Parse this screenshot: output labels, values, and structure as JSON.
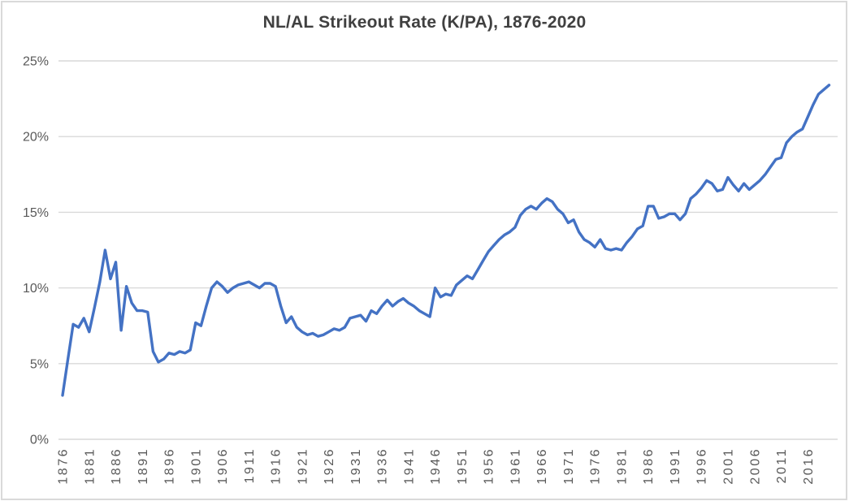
{
  "chart_data": {
    "type": "line",
    "title": "NL/AL Strikeout Rate (K/PA), 1876-2020",
    "xlabel": "",
    "ylabel": "",
    "series_name": "Strikeout rate (K/PA)",
    "x_start": 1876,
    "x_end": 2020,
    "x_step": 1,
    "values_unit": "percent",
    "values": [
      2.9,
      5.3,
      7.6,
      7.4,
      8.0,
      7.1,
      8.7,
      10.4,
      12.5,
      10.6,
      11.7,
      7.2,
      10.1,
      9.0,
      8.5,
      8.5,
      8.4,
      5.8,
      5.1,
      5.3,
      5.7,
      5.6,
      5.8,
      5.7,
      5.9,
      7.7,
      7.5,
      8.8,
      10.0,
      10.4,
      10.1,
      9.7,
      10.0,
      10.2,
      10.3,
      10.4,
      10.2,
      10.0,
      10.3,
      10.3,
      10.1,
      8.8,
      7.7,
      8.1,
      7.4,
      7.1,
      6.9,
      7.0,
      6.8,
      6.9,
      7.1,
      7.3,
      7.2,
      7.4,
      8.0,
      8.1,
      8.2,
      7.8,
      8.5,
      8.3,
      8.8,
      9.2,
      8.8,
      9.1,
      9.3,
      9.0,
      8.8,
      8.5,
      8.3,
      8.1,
      10.0,
      9.4,
      9.6,
      9.5,
      10.2,
      10.5,
      10.8,
      10.6,
      11.2,
      11.8,
      12.4,
      12.8,
      13.2,
      13.5,
      13.7,
      14.0,
      14.8,
      15.2,
      15.4,
      15.2,
      15.6,
      15.9,
      15.7,
      15.2,
      14.9,
      14.3,
      14.5,
      13.7,
      13.2,
      13.0,
      12.7,
      13.2,
      12.6,
      12.5,
      12.6,
      12.5,
      13.0,
      13.4,
      13.9,
      14.1,
      15.4,
      15.4,
      14.6,
      14.7,
      14.9,
      14.9,
      14.5,
      14.9,
      15.9,
      16.2,
      16.6,
      17.1,
      16.9,
      16.4,
      16.5,
      17.3,
      16.8,
      16.4,
      16.9,
      16.5,
      16.8,
      17.1,
      17.5,
      18.0,
      18.5,
      18.6,
      19.6,
      20.0,
      20.3,
      20.5,
      21.3,
      22.1,
      22.8,
      23.1,
      23.4
    ],
    "ylim": [
      0,
      25
    ],
    "y_tick_interval": 5,
    "y_tick_labels": [
      "0%",
      "5%",
      "10%",
      "15%",
      "20%",
      "25%"
    ],
    "x_tick_interval": 5,
    "x_tick_labels": [
      "1876",
      "1881",
      "1886",
      "1891",
      "1896",
      "1901",
      "1906",
      "1911",
      "1916",
      "1921",
      "1926",
      "1931",
      "1936",
      "1941",
      "1946",
      "1951",
      "1956",
      "1961",
      "1966",
      "1971",
      "1976",
      "1981",
      "1986",
      "1991",
      "1996",
      "2001",
      "2006",
      "2011",
      "2016"
    ],
    "grid": "horizontal",
    "legend": "none",
    "line_color": "#4472C4",
    "gridline_color": "#D9D9D9",
    "tick_label_color": "#595959",
    "title_color": "#404040",
    "frame_border_color": "#D9D9D9",
    "background_color": "#FFFFFF"
  }
}
